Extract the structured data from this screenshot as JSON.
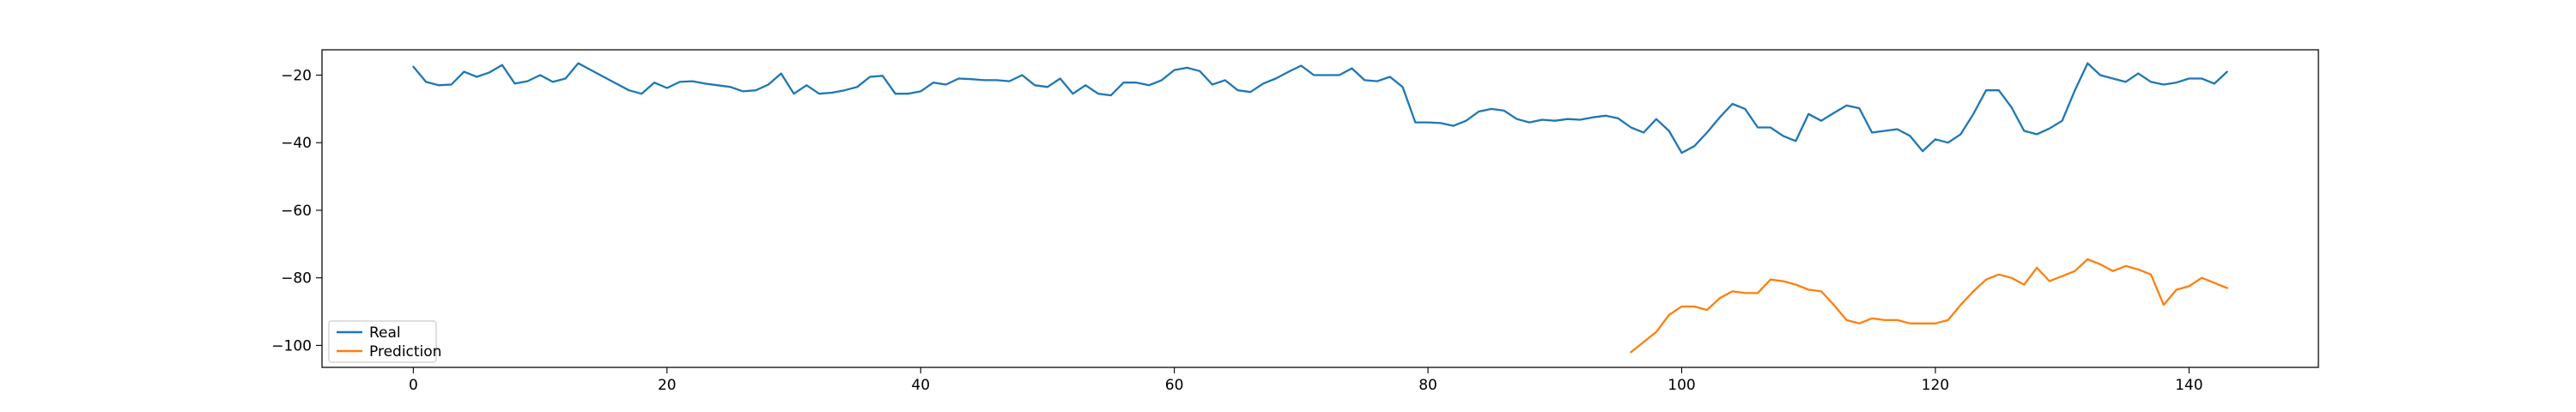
{
  "chart_data": {
    "type": "line",
    "title": "",
    "xlabel": "",
    "ylabel": "",
    "xlim": [
      -7.2,
      150.2
    ],
    "ylim": [
      -106.5,
      -12.5
    ],
    "xticks": [
      0,
      20,
      40,
      60,
      80,
      100,
      120,
      140
    ],
    "yticks": [
      -100,
      -80,
      -60,
      -40,
      -20
    ],
    "grid": false,
    "legend": {
      "location": "lower left",
      "entries": [
        "Real",
        "Prediction"
      ]
    },
    "series": [
      {
        "name": "Real",
        "color": "#1f77b4",
        "x_start": 0,
        "values": [
          -17.5,
          -22,
          -23,
          -22.8,
          -19,
          -20.5,
          -19.2,
          -17,
          -22.5,
          -21.8,
          -20,
          -22,
          -21,
          -16.5,
          -18.5,
          -20.5,
          -22.5,
          -24.5,
          -25.5,
          -22.2,
          -23.8,
          -22,
          -21.8,
          -22.5,
          -23,
          -23.5,
          -24.8,
          -24.5,
          -22.8,
          -19.5,
          -25.5,
          -23,
          -25.5,
          -25.2,
          -24.5,
          -23.5,
          -20.5,
          -20.2,
          -25.5,
          -25.5,
          -24.8,
          -22.2,
          -22.8,
          -21,
          -21.2,
          -21.5,
          -21.5,
          -21.8,
          -20,
          -23,
          -23.5,
          -21,
          -25.5,
          -23,
          -25.5,
          -26,
          -22.2,
          -22.2,
          -23,
          -21.5,
          -18.5,
          -17.8,
          -18.8,
          -22.8,
          -21.5,
          -24.5,
          -25,
          -22.5,
          -21,
          -19,
          -17.2,
          -20,
          -20,
          -20,
          -18,
          -21.5,
          -21.8,
          -20.5,
          -23.5,
          -34,
          -34,
          -34.2,
          -35,
          -33.5,
          -30.8,
          -30,
          -30.5,
          -33,
          -34,
          -33.2,
          -33.5,
          -33,
          -33.2,
          -32.5,
          -32,
          -32.8,
          -35.5,
          -37,
          -33,
          -36.5,
          -43,
          -41,
          -37,
          -32.5,
          -28.5,
          -30,
          -35.5,
          -35.5,
          -38,
          -39.5,
          -31.5,
          -33.5,
          -31.2,
          -29,
          -29.8,
          -37,
          -36.5,
          -36,
          -38,
          -42.5,
          -39,
          -40,
          -37.5,
          -31.5,
          -24.5,
          -24.5,
          -29.5,
          -36.5,
          -37.5,
          -35.8,
          -33.5,
          -24.5,
          -16.5,
          -20,
          -21,
          -22,
          -19.5,
          -22,
          -22.8,
          -22.2,
          -21,
          -21,
          -22.5,
          -19
        ]
      },
      {
        "name": "Prediction",
        "color": "#ff7f0e",
        "x_start": 96,
        "values": [
          -102,
          -99,
          -96,
          -91,
          -88.5,
          -88.5,
          -89.5,
          -86,
          -84,
          -84.5,
          -84.5,
          -80.5,
          -81,
          -82,
          -83.5,
          -84,
          -88,
          -92.5,
          -93.5,
          -92,
          -92.5,
          -92.5,
          -93.5,
          -93.5,
          -93.5,
          -92.5,
          -88,
          -84,
          -80.5,
          -79,
          -80,
          -82,
          -77,
          -81,
          -79.5,
          -78,
          -74.5,
          -76,
          -78,
          -76.5,
          -77.5,
          -79,
          -88,
          -83.5,
          -82.5,
          -80,
          -81.5,
          -83
        ]
      }
    ]
  }
}
